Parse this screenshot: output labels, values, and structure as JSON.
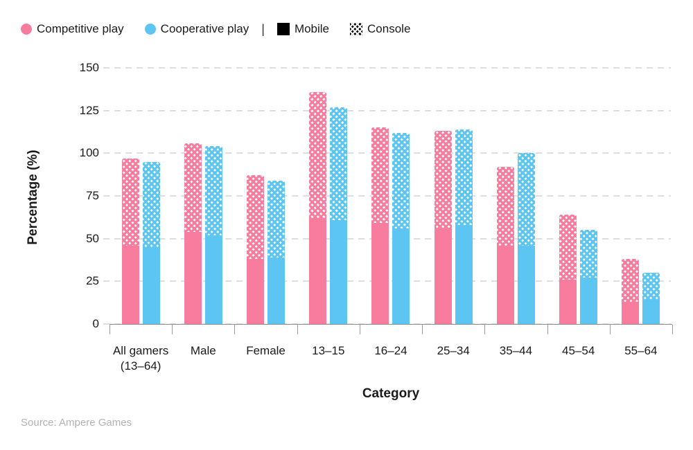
{
  "legend": {
    "separator": "|",
    "series": [
      {
        "label": "Competitive play",
        "color": "#f87c9e"
      },
      {
        "label": "Cooperative play",
        "color": "#5cc5f2"
      }
    ],
    "patterns": [
      {
        "label": "Mobile",
        "style": "solid",
        "color": "#000000"
      },
      {
        "label": "Console",
        "style": "crosshatch",
        "color": "#000000"
      }
    ]
  },
  "chart_data": {
    "type": "bar",
    "stacked": true,
    "title": "",
    "xlabel": "Category",
    "ylabel": "Percentage (%)",
    "ylim": [
      0,
      150
    ],
    "yticks": [
      0,
      25,
      50,
      75,
      100,
      125,
      150
    ],
    "grid": "horizontal-dashed",
    "legend_position": "top-left",
    "categories": [
      "All gamers\n(13–64)",
      "Male",
      "Female",
      "13–15",
      "16–24",
      "25–34",
      "35–44",
      "45–54",
      "55–64"
    ],
    "segment_order": [
      "console",
      "mobile"
    ],
    "segment_patterns": {
      "mobile": "solid",
      "console": "crosshatch"
    },
    "series": [
      {
        "name": "Competitive play",
        "color": "#f87c9e",
        "segments": {
          "mobile": [
            46,
            54,
            38,
            62,
            59,
            56,
            46,
            26,
            13
          ],
          "console": [
            51,
            52,
            49,
            74,
            56,
            57,
            46,
            38,
            25
          ]
        },
        "totals": [
          97,
          106,
          87,
          136,
          115,
          113,
          92,
          64,
          38
        ]
      },
      {
        "name": "Cooperative play",
        "color": "#5cc5f2",
        "segments": {
          "mobile": [
            45,
            52,
            39,
            61,
            56,
            58,
            46,
            27,
            14
          ],
          "console": [
            50,
            52,
            45,
            66,
            56,
            56,
            54,
            28,
            16
          ]
        },
        "totals": [
          95,
          104,
          84,
          127,
          112,
          114,
          100,
          55,
          30
        ]
      }
    ]
  },
  "footer": {
    "source": "Source: Ampere Games"
  }
}
